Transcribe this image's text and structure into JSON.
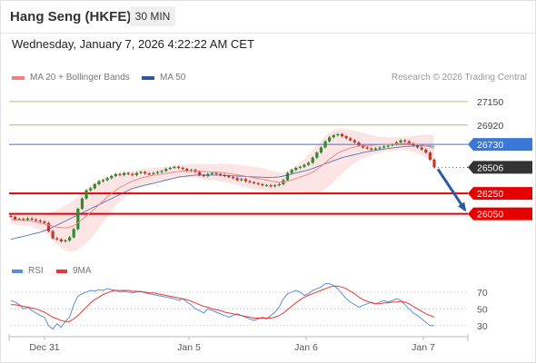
{
  "header": {
    "title": "Hang Seng (HKFE)",
    "timeframe": "30 MIN",
    "datetime": "Wednesday, January 7, 2026 4:22:22 AM CET"
  },
  "legend": {
    "ma20_label": "MA 20 + Bollinger Bands",
    "ma50_label": "MA 50",
    "rsi_label": "RSI",
    "ma9_label": "9MA",
    "credit": "Research © 2026 Trading Central"
  },
  "colors": {
    "ma20": "#f08080",
    "ma50": "#2c5aa0",
    "band_fill": "#fde0e0",
    "up": "#2e8b2e",
    "down": "#c0392b",
    "resistance_green": "#9ccc65",
    "pivot_blue": "#3a78d8",
    "support_red": "#e60000",
    "current": "#333333",
    "rsi": "#5b8ed8",
    "rsi_ma": "#e53935"
  },
  "chart_data": [
    {
      "type": "line",
      "title": "Hang Seng (HKFE) 30 MIN",
      "x_ticks": [
        "Dec 31",
        "Jan 5",
        "Jan 6",
        "Jan 7"
      ],
      "ylim": [
        25700,
        27300
      ],
      "price_levels": [
        {
          "value": 27150,
          "label": "27150",
          "kind": "resistance"
        },
        {
          "value": 26920,
          "label": "26920",
          "kind": "resistance"
        },
        {
          "value": 26730,
          "label": "26730",
          "kind": "pivot"
        },
        {
          "value": 26506,
          "label": "26506",
          "kind": "last_price"
        },
        {
          "value": 26250,
          "label": "26250",
          "kind": "support"
        },
        {
          "value": 26050,
          "label": "26050",
          "kind": "support"
        }
      ],
      "close": [
        26020,
        25995,
        26000,
        25990,
        26005,
        25995,
        25985,
        25975,
        25960,
        25880,
        25810,
        25800,
        25780,
        25790,
        25820,
        25900,
        26100,
        26200,
        26280,
        26300,
        26340,
        26370,
        26380,
        26400,
        26420,
        26440,
        26430,
        26450,
        26440,
        26430,
        26450,
        26460,
        26445,
        26440,
        26450,
        26460,
        26470,
        26490,
        26500,
        26510,
        26500,
        26490,
        26470,
        26480,
        26460,
        26430,
        26420,
        26440,
        26450,
        26440,
        26430,
        26420,
        26410,
        26400,
        26380,
        26390,
        26370,
        26360,
        26350,
        26340,
        26330,
        26330,
        26320,
        26330,
        26340,
        26380,
        26450,
        26480,
        26500,
        26510,
        26530,
        26550,
        26600,
        26650,
        26700,
        26760,
        26800,
        26820,
        26830,
        26810,
        26790,
        26770,
        26750,
        26720,
        26700,
        26690,
        26680,
        26690,
        26700,
        26710,
        26720,
        26730,
        26750,
        26770,
        26760,
        26740,
        26720,
        26700,
        26680,
        26650,
        26580,
        26506
      ],
      "ma20": [
        25995,
        25990,
        25988,
        25984,
        25982,
        25978,
        25970,
        25960,
        25950,
        25940,
        25930,
        25920,
        25915,
        25912,
        25918,
        25935,
        25960,
        25995,
        26030,
        26065,
        26100,
        26140,
        26180,
        26215,
        26250,
        26280,
        26310,
        26330,
        26350,
        26370,
        26385,
        26400,
        26410,
        26420,
        26428,
        26435,
        26440,
        26445,
        26452,
        26460,
        26465,
        26468,
        26470,
        26472,
        26470,
        26468,
        26465,
        26462,
        26460,
        26458,
        26455,
        26450,
        26445,
        26440,
        26432,
        26425,
        26418,
        26410,
        26402,
        26395,
        26388,
        26380,
        26372,
        26365,
        26360,
        26362,
        26370,
        26382,
        26395,
        26410,
        26425,
        26440,
        26460,
        26485,
        26515,
        26550,
        26585,
        26615,
        26645,
        26665,
        26680,
        26695,
        26705,
        26712,
        26718,
        26720,
        26722,
        26724,
        26726,
        26728,
        26730,
        26732,
        26735,
        26738,
        26740,
        26738,
        26735,
        26730,
        26722,
        26715,
        26705,
        26690
      ],
      "bb_width": [
        40,
        45,
        48,
        50,
        52,
        55,
        60,
        70,
        85,
        110,
        140,
        170,
        200,
        220,
        240,
        250,
        260,
        265,
        268,
        262,
        250,
        235,
        215,
        195,
        175,
        155,
        140,
        125,
        110,
        100,
        92,
        85,
        80,
        76,
        72,
        70,
        68,
        66,
        65,
        64,
        64,
        64,
        65,
        66,
        68,
        70,
        72,
        75,
        78,
        82,
        86,
        90,
        94,
        98,
        100,
        102,
        104,
        106,
        108,
        110,
        110,
        108,
        104,
        100,
        96,
        95,
        100,
        110,
        125,
        145,
        165,
        190,
        215,
        235,
        250,
        260,
        262,
        255,
        240,
        220,
        200,
        180,
        160,
        140,
        125,
        112,
        100,
        90,
        80,
        74,
        70,
        68,
        66,
        66,
        68,
        72,
        80,
        90,
        100,
        110,
        120,
        130
      ],
      "ma50": [
        25800,
        25810,
        25820,
        25830,
        25840,
        25850,
        25860,
        25870,
        25885,
        25900,
        25920,
        25940,
        25960,
        25980,
        26000,
        26020,
        26040,
        26060,
        26080,
        26100,
        26120,
        26140,
        26160,
        26180,
        26200,
        26220,
        26240,
        26260,
        26280,
        26300,
        26310,
        26320,
        26330,
        26340,
        26350,
        26360,
        26370,
        26380,
        26390,
        26400,
        26410,
        26415,
        26420,
        26425,
        26430,
        26430,
        26430,
        26430,
        26430,
        26430,
        26428,
        26426,
        26424,
        26422,
        26420,
        26418,
        26416,
        26414,
        26412,
        26410,
        26408,
        26406,
        26406,
        26408,
        26412,
        26420,
        26430,
        26440,
        26450,
        26460,
        26470,
        26480,
        26495,
        26510,
        26525,
        26540,
        26555,
        26570,
        26585,
        26600,
        26610,
        26620,
        26630,
        26640,
        26650,
        26658,
        26665,
        26672,
        26678,
        26684,
        26690,
        26695,
        26700,
        26705,
        26710,
        26712,
        26714,
        26716,
        26716,
        26716,
        26714,
        26712
      ],
      "forecast": {
        "from": 26506,
        "to": 26050
      }
    },
    {
      "type": "line",
      "ylim": [
        20,
        85
      ],
      "y_ticks": [
        30,
        50,
        70
      ],
      "x_ticks": [
        "Dec 31",
        "Jan 5",
        "Jan 6",
        "Jan 7"
      ],
      "rsi": [
        60,
        58,
        55,
        50,
        52,
        48,
        45,
        42,
        40,
        30,
        26,
        32,
        28,
        35,
        40,
        55,
        65,
        68,
        70,
        72,
        71,
        73,
        72,
        74,
        73,
        72,
        70,
        71,
        70,
        69,
        70,
        71,
        69,
        68,
        67,
        66,
        65,
        64,
        63,
        62,
        60,
        62,
        58,
        55,
        50,
        48,
        45,
        50,
        48,
        46,
        44,
        42,
        40,
        42,
        44,
        42,
        40,
        38,
        36,
        38,
        40,
        38,
        42,
        46,
        52,
        62,
        68,
        70,
        72,
        70,
        66,
        68,
        72,
        74,
        76,
        80,
        80,
        78,
        74,
        68,
        62,
        58,
        55,
        52,
        54,
        56,
        58,
        56,
        58,
        60,
        58,
        60,
        62,
        60,
        55,
        50,
        45,
        42,
        38,
        34,
        30,
        30
      ],
      "rsi_ma": [
        55,
        55,
        54,
        53,
        52,
        51,
        50,
        48,
        46,
        43,
        40,
        38,
        36,
        35,
        35,
        38,
        42,
        47,
        52,
        57,
        61,
        64,
        67,
        69,
        71,
        72,
        72,
        72,
        72,
        71,
        71,
        70,
        70,
        69,
        69,
        68,
        67,
        66,
        65,
        64,
        63,
        62,
        61,
        59,
        57,
        55,
        53,
        52,
        50,
        49,
        48,
        46,
        45,
        44,
        43,
        42,
        41,
        40,
        39,
        39,
        39,
        39,
        39,
        40,
        42,
        45,
        49,
        53,
        57,
        61,
        64,
        66,
        68,
        70,
        72,
        74,
        76,
        77,
        77,
        76,
        74,
        71,
        68,
        64,
        61,
        59,
        57,
        56,
        56,
        57,
        57,
        58,
        58,
        59,
        58,
        56,
        53,
        50,
        47,
        44,
        42,
        40
      ]
    }
  ]
}
